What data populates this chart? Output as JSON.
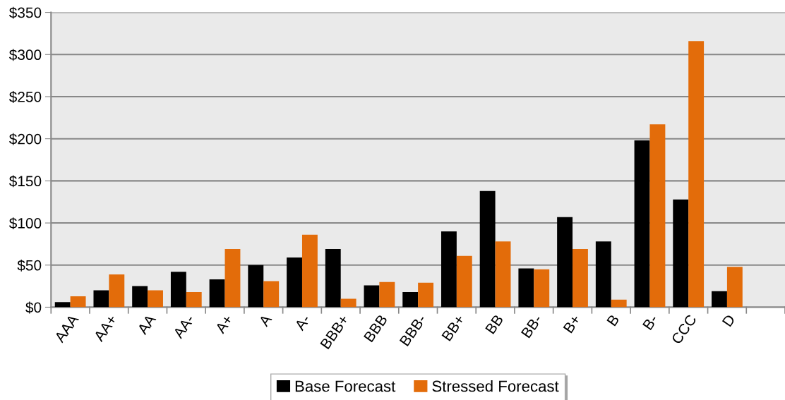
{
  "chart_data": {
    "type": "bar",
    "categories": [
      "AAA",
      "AA+",
      "AA",
      "AA-",
      "A+",
      "A",
      "A-",
      "BBB+",
      "BBB",
      "BBB-",
      "BB+",
      "BB",
      "BB-",
      "B+",
      "B",
      "B-",
      "CCC",
      "D",
      null
    ],
    "series": [
      {
        "name": "Base Forecast",
        "color": "#000000",
        "values": [
          6,
          20,
          25,
          42,
          33,
          50,
          59,
          69,
          26,
          18,
          90,
          138,
          46,
          107,
          78,
          198,
          128,
          19,
          null
        ]
      },
      {
        "name": "Stressed Forecast",
        "color": "#e36c0a",
        "values": [
          13,
          39,
          20,
          18,
          69,
          31,
          86,
          10,
          30,
          29,
          61,
          78,
          45,
          69,
          9,
          217,
          316,
          48,
          null
        ]
      }
    ],
    "ylim": [
      0,
      350
    ],
    "yticks": [
      {
        "value": 0,
        "label": "$0"
      },
      {
        "value": 50,
        "label": "$50"
      },
      {
        "value": 100,
        "label": "$100"
      },
      {
        "value": 150,
        "label": "$150"
      },
      {
        "value": 200,
        "label": "$200"
      },
      {
        "value": 250,
        "label": "$250"
      },
      {
        "value": 300,
        "label": "$300"
      },
      {
        "value": 350,
        "label": "$350"
      }
    ],
    "grid": "y",
    "legend": "bottom"
  }
}
